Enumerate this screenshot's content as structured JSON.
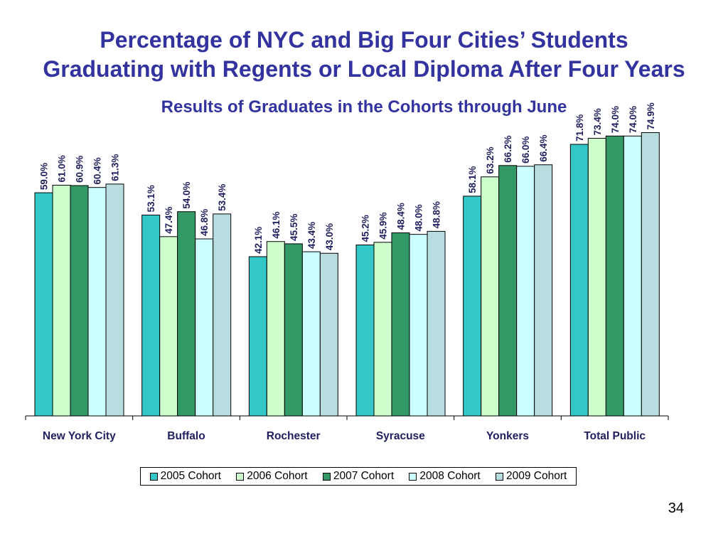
{
  "slide": {
    "page_number": "34"
  },
  "chart_data": {
    "type": "bar",
    "title": [
      "Percentage of NYC and Big Four Cities’ Students",
      "Graduating with Regents or Local Diploma After Four Years"
    ],
    "subtitle": "Results of Graduates in the Cohorts through June",
    "categories": [
      "New York City",
      "Buffalo",
      "Rochester",
      "Syracuse",
      "Yonkers",
      "Total Public"
    ],
    "series": [
      {
        "name": "2005 Cohort",
        "color": "#33c7c7",
        "values": [
          59.0,
          53.1,
          42.1,
          45.2,
          58.1,
          71.8
        ],
        "labels": [
          "59.0%",
          "53.1%",
          "42.1%",
          "45.2%",
          "58.1%",
          "71.8%"
        ]
      },
      {
        "name": "2006 Cohort",
        "color": "#ccffcc",
        "values": [
          61.0,
          47.4,
          46.1,
          45.9,
          63.2,
          73.4
        ],
        "labels": [
          "61.0%",
          "47.4%",
          "46.1%",
          "45.9%",
          "63.2%",
          "73.4%"
        ]
      },
      {
        "name": "2007 Cohort",
        "color": "#339966",
        "values": [
          60.9,
          54.0,
          45.5,
          48.4,
          66.2,
          74.0
        ],
        "labels": [
          "60.9%",
          "54.0%",
          "45.5%",
          "48.4%",
          "66.2%",
          "74.0%"
        ]
      },
      {
        "name": "2008 Cohort",
        "color": "#ccffff",
        "values": [
          60.4,
          46.8,
          43.4,
          48.0,
          66.0,
          74.0
        ],
        "labels": [
          "60.4%",
          "46.8%",
          "43.4%",
          "48.0%",
          "66.0%",
          "74.0%"
        ]
      },
      {
        "name": "2009 Cohort",
        "color": "#b7dde0",
        "values": [
          61.3,
          53.4,
          43.0,
          48.8,
          66.4,
          74.9
        ],
        "labels": [
          "61.3%",
          "53.4%",
          "43.0%",
          "48.8%",
          "66.4%",
          "74.9%"
        ]
      }
    ],
    "ylim": [
      0,
      100
    ],
    "grid": false,
    "legend_position": "bottom"
  }
}
